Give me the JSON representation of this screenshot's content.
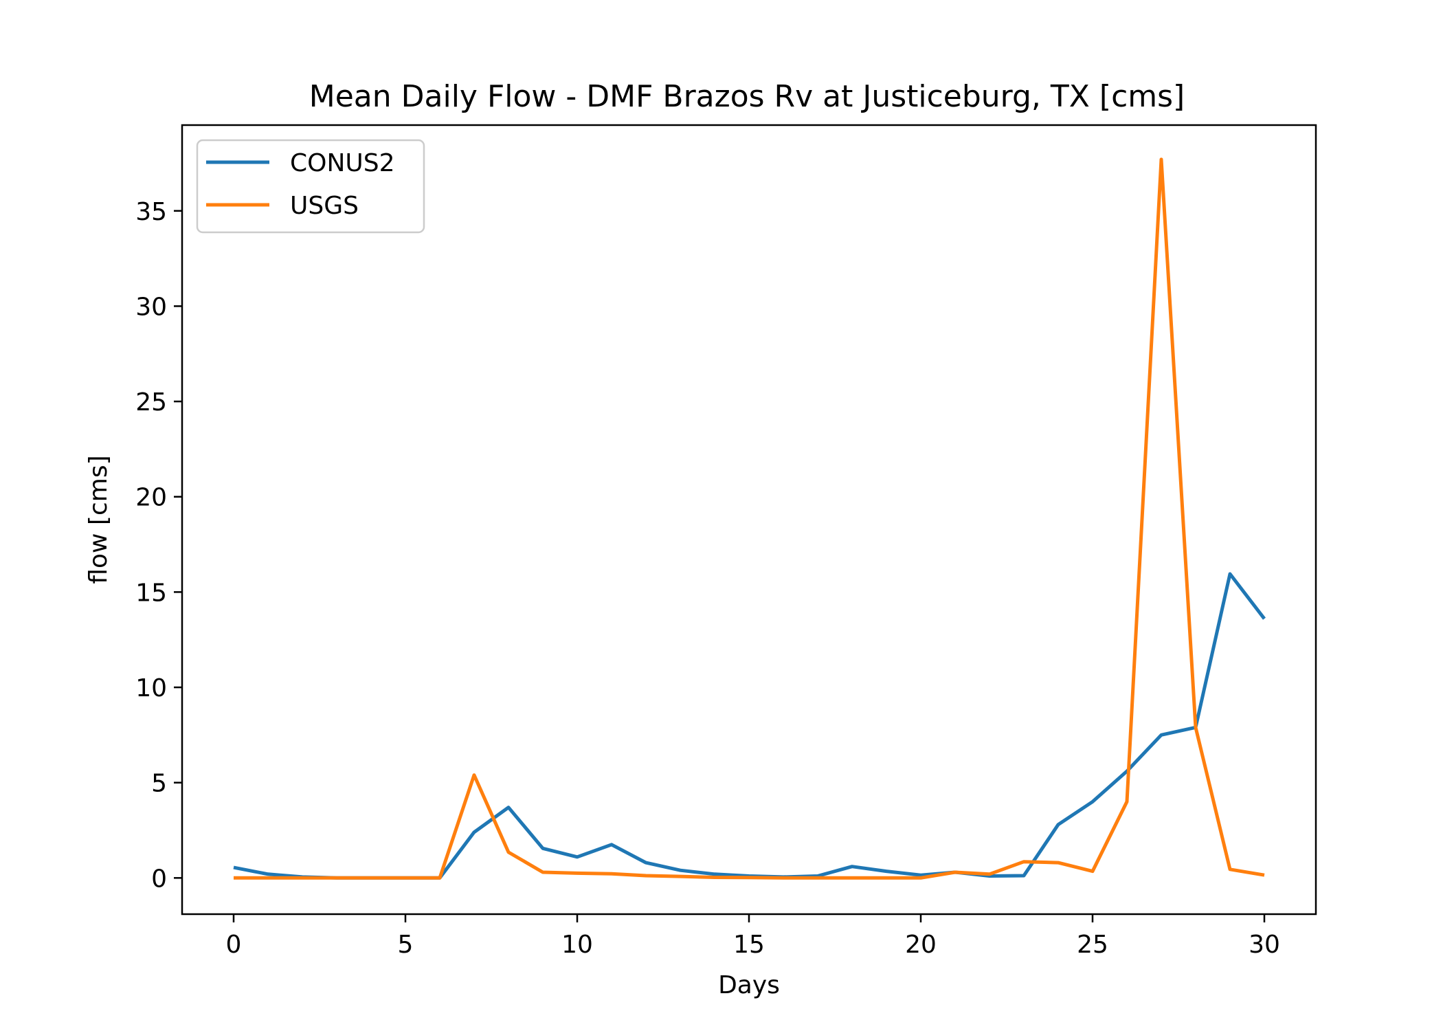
{
  "chart_data": {
    "type": "line",
    "title": "Mean Daily Flow - DMF Brazos Rv at Justiceburg, TX [cms]",
    "xlabel": "Days",
    "ylabel": "flow [cms]",
    "xlim": [
      -1.5,
      31.5
    ],
    "ylim": [
      -1.9,
      39.5
    ],
    "xticks": [
      0,
      5,
      10,
      15,
      20,
      25,
      30
    ],
    "yticks": [
      0,
      5,
      10,
      15,
      20,
      25,
      30,
      35
    ],
    "grid": false,
    "legend_position": "top-left",
    "x": [
      0,
      1,
      2,
      3,
      4,
      5,
      6,
      7,
      8,
      9,
      10,
      11,
      12,
      13,
      14,
      15,
      16,
      17,
      18,
      19,
      20,
      21,
      22,
      23,
      24,
      25,
      26,
      27,
      28,
      29,
      30
    ],
    "series": [
      {
        "name": "CONUS2",
        "color": "#1f77b4",
        "values": [
          0.55,
          0.2,
          0.05,
          0.0,
          0.0,
          0.0,
          0.0,
          2.4,
          3.7,
          1.55,
          1.1,
          1.75,
          0.8,
          0.4,
          0.2,
          0.1,
          0.05,
          0.1,
          0.6,
          0.35,
          0.15,
          0.3,
          0.1,
          0.12,
          2.8,
          4.0,
          5.6,
          7.5,
          7.9,
          15.95,
          13.6
        ]
      },
      {
        "name": "USGS",
        "color": "#ff7f0e",
        "values": [
          0.0,
          0.0,
          0.0,
          0.0,
          0.0,
          0.0,
          0.0,
          5.4,
          1.35,
          0.3,
          0.25,
          0.22,
          0.12,
          0.08,
          0.03,
          0.02,
          0.0,
          0.0,
          0.0,
          0.0,
          0.0,
          0.3,
          0.2,
          0.85,
          0.8,
          0.35,
          4.0,
          37.7,
          7.9,
          0.45,
          0.15
        ]
      }
    ]
  }
}
